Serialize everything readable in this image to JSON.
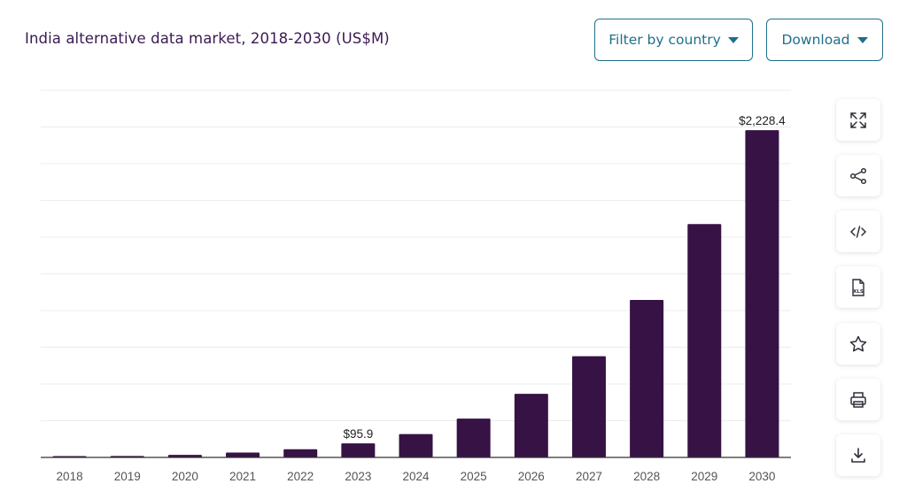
{
  "header": {
    "title": "India alternative data market, 2018-2030 (US$M)",
    "filter_label": "Filter by country",
    "download_label": "Download"
  },
  "toolbar": {
    "icons": [
      "fullscreen-icon",
      "share-icon",
      "embed-code-icon",
      "xls-file-icon",
      "star-icon",
      "print-icon",
      "download-icon"
    ]
  },
  "colors": {
    "bar": "#361245",
    "title": "#3b1a52",
    "button": "#1f6f8b",
    "grid": "#ececec"
  },
  "chart_data": {
    "type": "bar",
    "categories": [
      "2018",
      "2019",
      "2020",
      "2021",
      "2022",
      "2023",
      "2024",
      "2025",
      "2026",
      "2027",
      "2028",
      "2029",
      "2030"
    ],
    "values": [
      5,
      10,
      17,
      33,
      56,
      95.9,
      159,
      264,
      433,
      689,
      1072,
      1589,
      2228.4
    ],
    "data_labels": [
      "",
      "",
      "",
      "",
      "",
      "$95.9",
      "",
      "",
      "",
      "",
      "",
      "",
      "$2,228.4"
    ],
    "ylim": [
      0,
      2500
    ],
    "grid": true,
    "grid_lines": 10,
    "xlabel": "",
    "ylabel": ""
  }
}
